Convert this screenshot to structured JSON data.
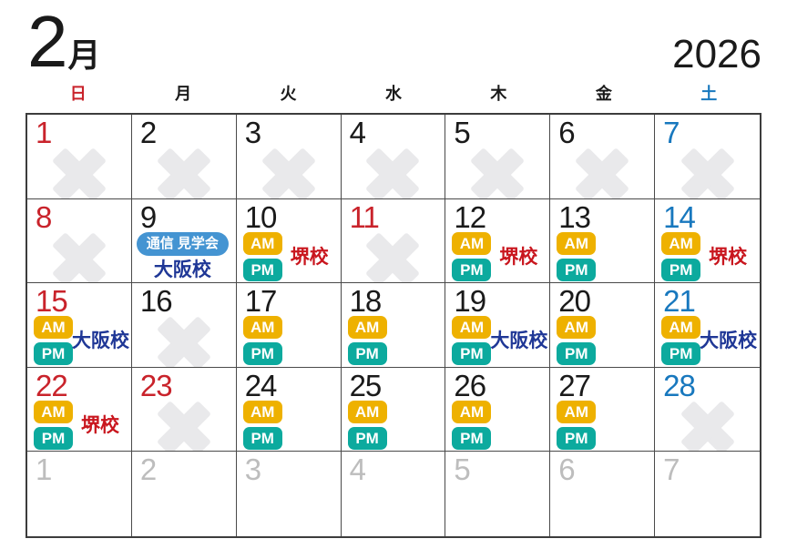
{
  "title": {
    "month": "2",
    "month_unit": "月",
    "year": "2026"
  },
  "weekday_header": [
    {
      "label": "日",
      "color": "#c9232b"
    },
    {
      "label": "月",
      "color": "#1a1a1a"
    },
    {
      "label": "火",
      "color": "#1a1a1a"
    },
    {
      "label": "水",
      "color": "#1a1a1a"
    },
    {
      "label": "木",
      "color": "#1a1a1a"
    },
    {
      "label": "金",
      "color": "#1a1a1a"
    },
    {
      "label": "土",
      "color": "#1878be"
    }
  ],
  "badge_labels": {
    "am": "AM",
    "pm": "PM",
    "tour": "通信 見学会"
  },
  "school_labels": {
    "sakai": "堺校",
    "osaka": "大阪校"
  },
  "colors": {
    "sunday_holiday_red": "#c9232b",
    "saturday_blue": "#1878be",
    "weekday_black": "#1a1a1a",
    "next_month_gray": "#bdbdbd",
    "am_badge_yellow": "#eeb100",
    "pm_badge_teal": "#0caa9e",
    "tour_badge_blue": "#4494d2",
    "school_sakai_red": "#c9161e",
    "school_osaka_blue": "#1f3796",
    "closed_x_gray": "#e9e9eb",
    "grid_line": "#4a4a4a"
  },
  "cells": [
    {
      "day": "1",
      "type": "sun",
      "closed": true
    },
    {
      "day": "2",
      "type": "weekday",
      "closed": true
    },
    {
      "day": "3",
      "type": "weekday",
      "closed": true
    },
    {
      "day": "4",
      "type": "weekday",
      "closed": true
    },
    {
      "day": "5",
      "type": "weekday",
      "closed": true
    },
    {
      "day": "6",
      "type": "weekday",
      "closed": true
    },
    {
      "day": "7",
      "type": "sat",
      "closed": true
    },
    {
      "day": "8",
      "type": "sun",
      "closed": true
    },
    {
      "day": "9",
      "type": "weekday",
      "tour": true,
      "tour_school": "osaka"
    },
    {
      "day": "10",
      "type": "weekday",
      "ampm": true,
      "label": "sakai"
    },
    {
      "day": "11",
      "type": "holiday",
      "closed": true
    },
    {
      "day": "12",
      "type": "weekday",
      "ampm": true,
      "label": "sakai"
    },
    {
      "day": "13",
      "type": "weekday",
      "ampm": true
    },
    {
      "day": "14",
      "type": "sat",
      "ampm": true,
      "label": "sakai"
    },
    {
      "day": "15",
      "type": "sun",
      "ampm": true,
      "label": "osaka"
    },
    {
      "day": "16",
      "type": "weekday",
      "closed": true
    },
    {
      "day": "17",
      "type": "weekday",
      "ampm": true
    },
    {
      "day": "18",
      "type": "weekday",
      "ampm": true
    },
    {
      "day": "19",
      "type": "weekday",
      "ampm": true,
      "label": "osaka"
    },
    {
      "day": "20",
      "type": "weekday",
      "ampm": true
    },
    {
      "day": "21",
      "type": "sat",
      "ampm": true,
      "label": "osaka"
    },
    {
      "day": "22",
      "type": "sun",
      "ampm": true,
      "label": "sakai"
    },
    {
      "day": "23",
      "type": "holiday",
      "closed": true
    },
    {
      "day": "24",
      "type": "weekday",
      "ampm": true
    },
    {
      "day": "25",
      "type": "weekday",
      "ampm": true
    },
    {
      "day": "26",
      "type": "weekday",
      "ampm": true
    },
    {
      "day": "27",
      "type": "weekday",
      "ampm": true
    },
    {
      "day": "28",
      "type": "sat",
      "closed": true
    },
    {
      "day": "1",
      "type": "next"
    },
    {
      "day": "2",
      "type": "next"
    },
    {
      "day": "3",
      "type": "next"
    },
    {
      "day": "4",
      "type": "next"
    },
    {
      "day": "5",
      "type": "next"
    },
    {
      "day": "6",
      "type": "next"
    },
    {
      "day": "7",
      "type": "next"
    }
  ]
}
